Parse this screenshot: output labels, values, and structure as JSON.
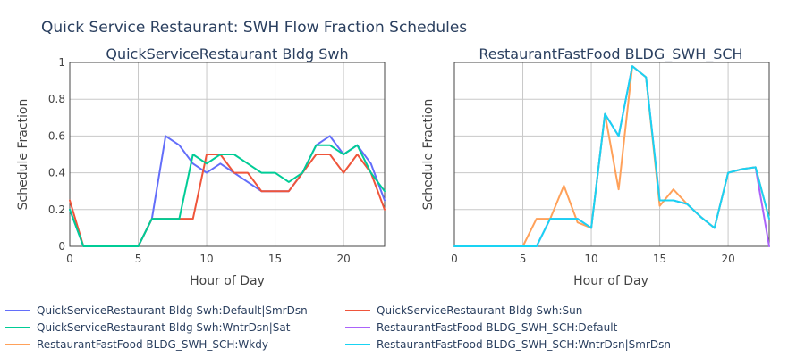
{
  "figure": {
    "title": "Quick Service Restaurant: SWH Flow Fraction Schedules"
  },
  "colors": {
    "QuickServiceRestaurant Bldg Swh:Default|SmrDsn": "#636efa",
    "QuickServiceRestaurant Bldg Swh:Sun": "#ef553b",
    "QuickServiceRestaurant Bldg Swh:WntrDsn|Sat": "#00cc96",
    "RestaurantFastFood BLDG_SWH_SCH:Default": "#ab63fa",
    "RestaurantFastFood BLDG_SWH_SCH:Wkdy": "#ffa15a",
    "RestaurantFastFood BLDG_SWH_SCH:WntrDsn|SmrDsn": "#19d3f3"
  },
  "legend": {
    "placement": "bottom",
    "entries": [
      "QuickServiceRestaurant Bldg Swh:Default|SmrDsn",
      "QuickServiceRestaurant Bldg Swh:Sun",
      "QuickServiceRestaurant Bldg Swh:WntrDsn|Sat",
      "RestaurantFastFood BLDG_SWH_SCH:Default",
      "RestaurantFastFood BLDG_SWH_SCH:Wkdy",
      "RestaurantFastFood BLDG_SWH_SCH:WntrDsn|SmrDsn"
    ]
  },
  "chart_data": [
    {
      "type": "line",
      "title": "QuickServiceRestaurant Bldg Swh",
      "xlabel": "Hour of Day",
      "ylabel": "Schedule Fraction",
      "xlim": [
        0,
        23
      ],
      "ylim": [
        0,
        1
      ],
      "xticks": [
        0,
        5,
        10,
        15,
        20
      ],
      "yticks": [
        0,
        0.2,
        0.4,
        0.6,
        0.8,
        1
      ],
      "ytick_labels": [
        "0",
        "0.2",
        "0.4",
        "0.6",
        "0.8",
        "1"
      ],
      "grid": true,
      "series": [
        {
          "name": "QuickServiceRestaurant Bldg Swh:Default|SmrDsn",
          "x": [
            0,
            1,
            2,
            3,
            4,
            5,
            6,
            7,
            8,
            9,
            10,
            11,
            12,
            13,
            14,
            15,
            16,
            17,
            18,
            19,
            20,
            21,
            22,
            23
          ],
          "y": [
            0.2,
            0,
            0,
            0,
            0,
            0,
            0.15,
            0.6,
            0.55,
            0.45,
            0.4,
            0.45,
            0.4,
            0.35,
            0.3,
            0.3,
            0.3,
            0.4,
            0.55,
            0.6,
            0.5,
            0.55,
            0.45,
            0.25
          ]
        },
        {
          "name": "QuickServiceRestaurant Bldg Swh:Sun",
          "x": [
            0,
            1,
            2,
            3,
            4,
            5,
            6,
            7,
            8,
            9,
            10,
            11,
            12,
            13,
            14,
            15,
            16,
            17,
            18,
            19,
            20,
            21,
            22,
            23
          ],
          "y": [
            0.25,
            0,
            0,
            0,
            0,
            0,
            0.15,
            0.15,
            0.15,
            0.15,
            0.5,
            0.5,
            0.4,
            0.4,
            0.3,
            0.3,
            0.3,
            0.4,
            0.5,
            0.5,
            0.4,
            0.5,
            0.4,
            0.2
          ]
        },
        {
          "name": "QuickServiceRestaurant Bldg Swh:WntrDsn|Sat",
          "x": [
            0,
            1,
            2,
            3,
            4,
            5,
            6,
            7,
            8,
            9,
            10,
            11,
            12,
            13,
            14,
            15,
            16,
            17,
            18,
            19,
            20,
            21,
            22,
            23
          ],
          "y": [
            0.2,
            0,
            0,
            0,
            0,
            0,
            0.15,
            0.15,
            0.15,
            0.5,
            0.45,
            0.5,
            0.5,
            0.45,
            0.4,
            0.4,
            0.35,
            0.4,
            0.55,
            0.55,
            0.5,
            0.55,
            0.4,
            0.3
          ]
        }
      ]
    },
    {
      "type": "line",
      "title": "RestaurantFastFood BLDG_SWH_SCH",
      "xlabel": "Hour of Day",
      "ylabel": "Schedule Fraction",
      "xlim": [
        0,
        23
      ],
      "ylim": [
        0,
        1
      ],
      "xticks": [
        0,
        5,
        10,
        15,
        20
      ],
      "yticks": [
        0,
        0.2,
        0.4,
        0.6,
        0.8,
        1
      ],
      "grid": true,
      "series": [
        {
          "name": "RestaurantFastFood BLDG_SWH_SCH:Default",
          "x": [
            0,
            1,
            2,
            3,
            4,
            5,
            6,
            7,
            8,
            9,
            10,
            11,
            12,
            13,
            14,
            15,
            16,
            17,
            18,
            19,
            20,
            21,
            22,
            23
          ],
          "y": [
            0,
            0,
            0,
            0,
            0,
            0,
            0,
            0.15,
            0.15,
            0.15,
            0.1,
            0.72,
            0.6,
            0.98,
            0.92,
            0.25,
            0.25,
            0.23,
            0.16,
            0.1,
            0.4,
            0.42,
            0.43,
            0
          ]
        },
        {
          "name": "RestaurantFastFood BLDG_SWH_SCH:Wkdy",
          "x": [
            0,
            1,
            2,
            3,
            4,
            5,
            6,
            7,
            8,
            9,
            10,
            11,
            12,
            13,
            14,
            15,
            16,
            17,
            18,
            19,
            20,
            21,
            22,
            23
          ],
          "y": [
            0,
            0,
            0,
            0,
            0,
            0,
            0.15,
            0.15,
            0.33,
            0.13,
            0.1,
            0.72,
            0.31,
            0.98,
            0.92,
            0.22,
            0.31,
            0.23,
            0.16,
            0.1,
            0.4,
            0.42,
            0.43,
            0.15
          ]
        },
        {
          "name": "RestaurantFastFood BLDG_SWH_SCH:WntrDsn|SmrDsn",
          "x": [
            0,
            1,
            2,
            3,
            4,
            5,
            6,
            7,
            8,
            9,
            10,
            11,
            12,
            13,
            14,
            15,
            16,
            17,
            18,
            19,
            20,
            21,
            22,
            23
          ],
          "y": [
            0,
            0,
            0,
            0,
            0,
            0,
            0,
            0.15,
            0.15,
            0.15,
            0.1,
            0.72,
            0.6,
            0.98,
            0.92,
            0.25,
            0.25,
            0.23,
            0.16,
            0.1,
            0.4,
            0.42,
            0.43,
            0.15
          ]
        }
      ]
    }
  ]
}
